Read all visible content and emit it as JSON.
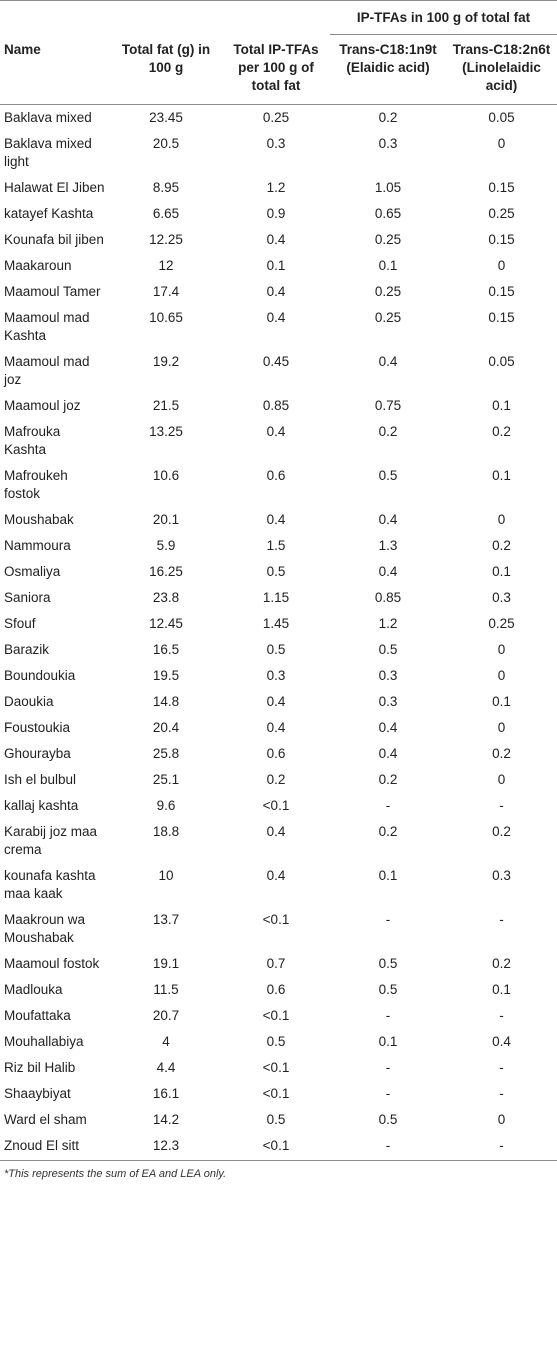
{
  "table": {
    "group_header": "IP-TFAs in 100 g of total fat",
    "headers": {
      "name": "Name",
      "total_fat": "Total fat (g) in 100 g",
      "total_iptfa": "Total IP-TFAs per 100 g of total fat",
      "ea": "Trans-C18:1n9t (Elaidic acid)",
      "lea": "Trans-C18:2n6t (Linolelaidic acid)"
    },
    "rows": [
      {
        "name": "Baklava mixed",
        "fat": "23.45",
        "total": "0.25",
        "ea": "0.2",
        "lea": "0.05"
      },
      {
        "name": "Baklava mixed light",
        "fat": "20.5",
        "total": "0.3",
        "ea": "0.3",
        "lea": "0"
      },
      {
        "name": "Halawat El Jiben",
        "fat": "8.95",
        "total": "1.2",
        "ea": "1.05",
        "lea": "0.15"
      },
      {
        "name": "katayef Kashta",
        "fat": "6.65",
        "total": "0.9",
        "ea": "0.65",
        "lea": "0.25"
      },
      {
        "name": "Kounafa bil jiben",
        "fat": "12.25",
        "total": "0.4",
        "ea": "0.25",
        "lea": "0.15"
      },
      {
        "name": "Maakaroun",
        "fat": "12",
        "total": "0.1",
        "ea": "0.1",
        "lea": "0"
      },
      {
        "name": "Maamoul Tamer",
        "fat": "17.4",
        "total": "0.4",
        "ea": "0.25",
        "lea": "0.15"
      },
      {
        "name": "Maamoul mad Kashta",
        "fat": "10.65",
        "total": "0.4",
        "ea": "0.25",
        "lea": "0.15"
      },
      {
        "name": "Maamoul mad joz",
        "fat": "19.2",
        "total": "0.45",
        "ea": "0.4",
        "lea": "0.05"
      },
      {
        "name": "Maamoul joz",
        "fat": "21.5",
        "total": "0.85",
        "ea": "0.75",
        "lea": "0.1"
      },
      {
        "name": "Mafrouka Kashta",
        "fat": "13.25",
        "total": "0.4",
        "ea": "0.2",
        "lea": "0.2"
      },
      {
        "name": "Mafroukeh fostok",
        "fat": "10.6",
        "total": "0.6",
        "ea": "0.5",
        "lea": "0.1"
      },
      {
        "name": "Moushabak",
        "fat": "20.1",
        "total": "0.4",
        "ea": "0.4",
        "lea": "0"
      },
      {
        "name": "Nammoura",
        "fat": "5.9",
        "total": "1.5",
        "ea": "1.3",
        "lea": "0.2"
      },
      {
        "name": "Osmaliya",
        "fat": "16.25",
        "total": "0.5",
        "ea": "0.4",
        "lea": "0.1"
      },
      {
        "name": "Saniora",
        "fat": "23.8",
        "total": "1.15",
        "ea": "0.85",
        "lea": "0.3"
      },
      {
        "name": "Sfouf",
        "fat": "12.45",
        "total": "1.45",
        "ea": "1.2",
        "lea": "0.25"
      },
      {
        "name": "Barazik",
        "fat": "16.5",
        "total": "0.5",
        "ea": "0.5",
        "lea": "0"
      },
      {
        "name": "Boundoukia",
        "fat": "19.5",
        "total": "0.3",
        "ea": "0.3",
        "lea": "0"
      },
      {
        "name": "Daoukia",
        "fat": "14.8",
        "total": "0.4",
        "ea": "0.3",
        "lea": "0.1"
      },
      {
        "name": "Foustoukia",
        "fat": "20.4",
        "total": "0.4",
        "ea": "0.4",
        "lea": "0"
      },
      {
        "name": "Ghourayba",
        "fat": "25.8",
        "total": "0.6",
        "ea": "0.4",
        "lea": "0.2"
      },
      {
        "name": "Ish el bulbul",
        "fat": "25.1",
        "total": "0.2",
        "ea": "0.2",
        "lea": "0"
      },
      {
        "name": "kallaj kashta",
        "fat": "9.6",
        "total": "<0.1",
        "ea": "-",
        "lea": "-"
      },
      {
        "name": "Karabij joz maa crema",
        "fat": "18.8",
        "total": "0.4",
        "ea": "0.2",
        "lea": "0.2"
      },
      {
        "name": "kounafa kashta maa kaak",
        "fat": "10",
        "total": "0.4",
        "ea": "0.1",
        "lea": "0.3"
      },
      {
        "name": "Maakroun wa Moushabak",
        "fat": "13.7",
        "total": "<0.1",
        "ea": "-",
        "lea": "-"
      },
      {
        "name": "Maamoul fostok",
        "fat": "19.1",
        "total": "0.7",
        "ea": "0.5",
        "lea": "0.2"
      },
      {
        "name": "Madlouka",
        "fat": "11.5",
        "total": "0.6",
        "ea": "0.5",
        "lea": "0.1"
      },
      {
        "name": "Moufattaka",
        "fat": "20.7",
        "total": "<0.1",
        "ea": "-",
        "lea": "-"
      },
      {
        "name": "Mouhallabiya",
        "fat": "4",
        "total": "0.5",
        "ea": "0.1",
        "lea": "0.4"
      },
      {
        "name": "Riz bil Halib",
        "fat": "4.4",
        "total": "<0.1",
        "ea": "-",
        "lea": "-"
      },
      {
        "name": "Shaaybiyat",
        "fat": "16.1",
        "total": "<0.1",
        "ea": "-",
        "lea": "-"
      },
      {
        "name": "Ward el sham",
        "fat": "14.2",
        "total": "0.5",
        "ea": "0.5",
        "lea": "0"
      },
      {
        "name": "Znoud El sitt",
        "fat": "12.3",
        "total": "<0.1",
        "ea": "-",
        "lea": "-"
      }
    ]
  },
  "footnote": "*This represents the sum of EA and LEA only."
}
